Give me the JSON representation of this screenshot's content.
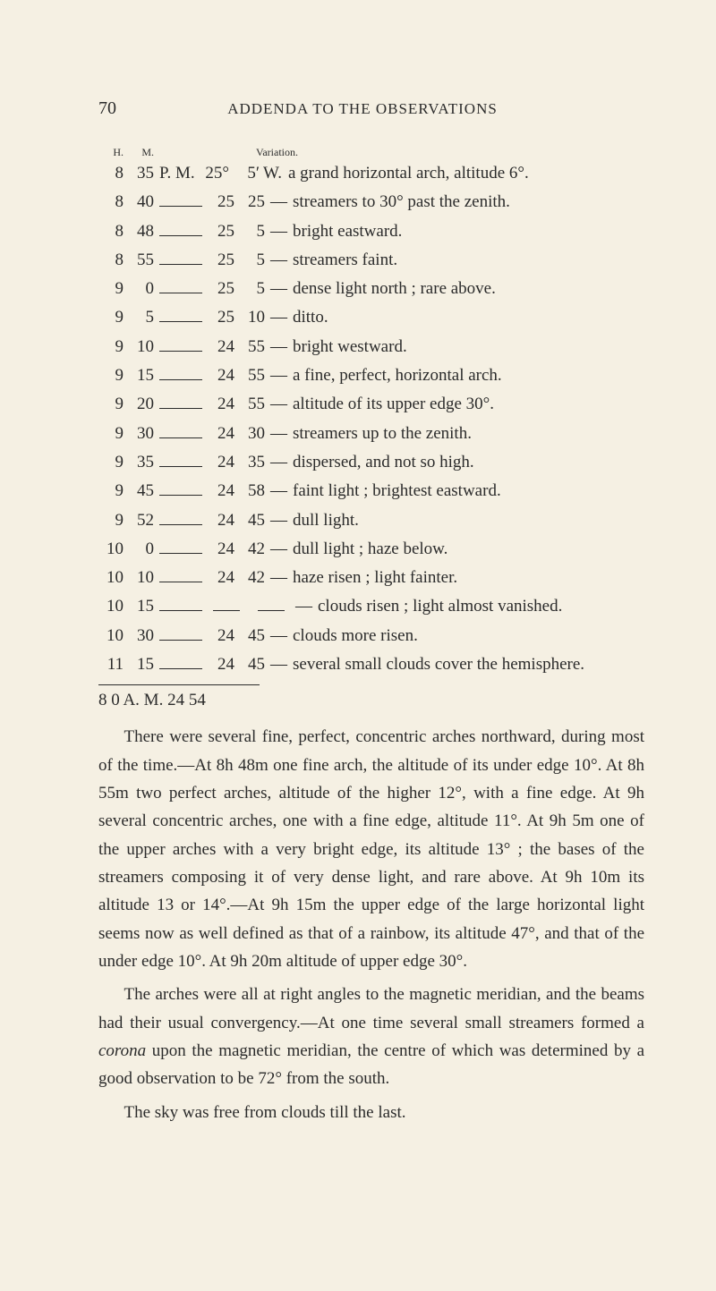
{
  "page_number": "70",
  "running_title": "ADDENDA TO THE OBSERVATIONS",
  "col_heads": {
    "h": "H.",
    "m": "M.",
    "var": "Variation."
  },
  "rows": [
    {
      "h": "8",
      "m": "35",
      "pm": "P. M.",
      "deg": "25°",
      "min": "5′",
      "dir": "W.",
      "sep": "",
      "desc": "a grand horizontal arch, altitude 6°."
    },
    {
      "h": "8",
      "m": "40",
      "pm": "",
      "deg": "25",
      "min": "25",
      "dir": "",
      "sep": "—",
      "desc": "streamers to 30° past the zenith."
    },
    {
      "h": "8",
      "m": "48",
      "pm": "",
      "deg": "25",
      "min": "5",
      "dir": "",
      "sep": "—",
      "desc": "bright eastward."
    },
    {
      "h": "8",
      "m": "55",
      "pm": "",
      "deg": "25",
      "min": "5",
      "dir": "",
      "sep": "—",
      "desc": "streamers faint."
    },
    {
      "h": "9",
      "m": "0",
      "pm": "",
      "deg": "25",
      "min": "5",
      "dir": "",
      "sep": "—",
      "desc": "dense light north ; rare above."
    },
    {
      "h": "9",
      "m": "5",
      "pm": "",
      "deg": "25",
      "min": "10",
      "dir": "",
      "sep": "—",
      "desc": "ditto."
    },
    {
      "h": "9",
      "m": "10",
      "pm": "",
      "deg": "24",
      "min": "55",
      "dir": "",
      "sep": "—",
      "desc": "bright westward."
    },
    {
      "h": "9",
      "m": "15",
      "pm": "",
      "deg": "24",
      "min": "55",
      "dir": "",
      "sep": "—",
      "desc": "a fine, perfect, horizontal arch."
    },
    {
      "h": "9",
      "m": "20",
      "pm": "",
      "deg": "24",
      "min": "55",
      "dir": "",
      "sep": "—",
      "desc": "altitude of its upper edge 30°."
    },
    {
      "h": "9",
      "m": "30",
      "pm": "",
      "deg": "24",
      "min": "30",
      "dir": "",
      "sep": "—",
      "desc": "streamers up to the zenith."
    },
    {
      "h": "9",
      "m": "35",
      "pm": "",
      "deg": "24",
      "min": "35",
      "dir": "",
      "sep": "—",
      "desc": "dispersed, and not so high."
    },
    {
      "h": "9",
      "m": "45",
      "pm": "",
      "deg": "24",
      "min": "58",
      "dir": "",
      "sep": "—",
      "desc": "faint light ; brightest eastward."
    },
    {
      "h": "9",
      "m": "52",
      "pm": "",
      "deg": "24",
      "min": "45",
      "dir": "",
      "sep": "—",
      "desc": "dull light."
    },
    {
      "h": "10",
      "m": "0",
      "pm": "",
      "deg": "24",
      "min": "42",
      "dir": "",
      "sep": "—",
      "desc": "dull light ; haze below."
    },
    {
      "h": "10",
      "m": "10",
      "pm": "",
      "deg": "24",
      "min": "42",
      "dir": "",
      "sep": "—",
      "desc": "haze risen ; light fainter."
    },
    {
      "h": "10",
      "m": "15",
      "pm": "",
      "deg": "",
      "min": "",
      "dir": "",
      "sep": "—",
      "desc": "clouds risen ; light almost vanished.",
      "blankCols": true
    },
    {
      "h": "10",
      "m": "30",
      "pm": "",
      "deg": "24",
      "min": "45",
      "dir": "",
      "sep": "—",
      "desc": "clouds more risen."
    },
    {
      "h": "11",
      "m": "15",
      "pm": "",
      "deg": "24",
      "min": "45",
      "dir": "",
      "sep": "—",
      "desc": "several small clouds cover the hemisphere."
    }
  ],
  "mean": "8  0 A. M. 24 54",
  "paragraphs": [
    "There were several fine, perfect, concentric arches northward, during most of the time.—At 8h 48m one fine arch, the altitude of its under edge 10°. At 8h 55m two perfect arches, altitude of the higher 12°, with a fine edge. At 9h several concentric arches, one with a fine edge, altitude 11°. At 9h 5m one of the upper arches with a very bright edge, its altitude 13° ; the bases of the streamers composing it of very dense light, and rare above. At 9h 10m its altitude 13 or 14°.—At 9h 15m the upper edge of the large horizontal light seems now as well defined as that of a rainbow, its altitude 47°, and that of the under edge 10°. At 9h 20m altitude of upper edge 30°.",
    "The arches were all at right angles to the magnetic meridian, and the beams had their usual convergency.—At one time several small streamers formed a corona upon the magnetic meridian, the centre of which was determined by a good observation to be 72° from the south.",
    "The sky was free from clouds till the last."
  ],
  "italic": "corona"
}
